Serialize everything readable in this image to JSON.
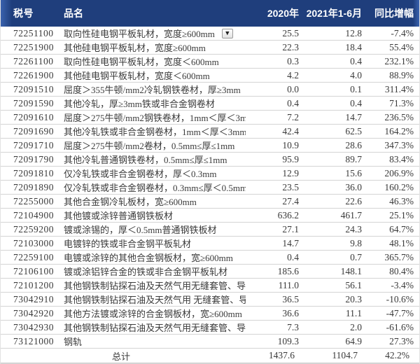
{
  "table": {
    "headers": {
      "code": "税号",
      "name": "品名",
      "y2020": "2020年",
      "y2021h1": "2021年1-6月",
      "yoy": "同比增幅"
    },
    "rows": [
      {
        "code": "72251100",
        "name": "取向性硅电钢平板轧材，宽度≥600mm",
        "y2020": "25.5",
        "y2021h1": "12.8",
        "yoy": "-7.4%",
        "has_filter_dropdown": true
      },
      {
        "code": "72251900",
        "name": "其他硅电钢平板轧材，宽度≥600mm",
        "y2020": "22.3",
        "y2021h1": "18.4",
        "yoy": "55.4%"
      },
      {
        "code": "72261100",
        "name": "取向性硅电钢平板轧材，宽度＜600mm",
        "y2020": "0.3",
        "y2021h1": "0.4",
        "yoy": "232.1%"
      },
      {
        "code": "72261900",
        "name": "其他硅电钢平板轧材，宽度＜600mm",
        "y2020": "4.2",
        "y2021h1": "4.0",
        "yoy": "88.9%"
      },
      {
        "code": "72091510",
        "name": "屈度＞355牛顿/mm2冷轧钢铁卷材，厚≥3mm",
        "y2020": "0.0",
        "y2021h1": "0.1",
        "yoy": "311.4%"
      },
      {
        "code": "72091590",
        "name": "其他冷轧，厚≥3mm铁或非合金钢卷材",
        "y2020": "0.4",
        "y2021h1": "0.4",
        "yoy": "71.3%"
      },
      {
        "code": "72091610",
        "name": "屈度＞275牛顿/mm2钢铁卷材，1mm＜厚＜3mm",
        "y2020": "7.2",
        "y2021h1": "14.7",
        "yoy": "236.5%"
      },
      {
        "code": "72091690",
        "name": "其他冷轧铁或非合金钢卷材，1mm＜厚＜3mm",
        "y2020": "42.4",
        "y2021h1": "62.5",
        "yoy": "164.2%"
      },
      {
        "code": "72091710",
        "name": "屈度＞275牛顿/mm2卷材，0.5mm≤厚≤1mm",
        "y2020": "10.9",
        "y2021h1": "28.6",
        "yoy": "347.3%"
      },
      {
        "code": "72091790",
        "name": "其他冷轧普通钢铁卷材，0.5mm≤厚≤1mm",
        "y2020": "95.9",
        "y2021h1": "89.7",
        "yoy": "83.4%"
      },
      {
        "code": "72091810",
        "name": "仅冷轧铁或非合金钢卷材，厚＜0.3mm",
        "y2020": "12.9",
        "y2021h1": "15.6",
        "yoy": "206.9%"
      },
      {
        "code": "72091890",
        "name": "仅冷轧铁或非合金钢卷材，0.3mm≤厚＜0.5mm",
        "y2020": "23.5",
        "y2021h1": "36.0",
        "yoy": "160.2%"
      },
      {
        "code": "72255000",
        "name": "其他合金钢冷轧板材，宽≥600mm",
        "y2020": "27.4",
        "y2021h1": "22.6",
        "yoy": "46.3%"
      },
      {
        "code": "72104900",
        "name": "其他镀或涂锌普通钢铁板材",
        "y2020": "636.2",
        "y2021h1": "461.7",
        "yoy": "25.1%"
      },
      {
        "code": "72259200",
        "name": "镀或涂锡的，厚＜0.5mm普通钢铁板材",
        "y2020": "27.1",
        "y2021h1": "24.3",
        "yoy": "64.7%"
      },
      {
        "code": "72103000",
        "name": "电镀锌的铁或非合金钢平板轧材",
        "y2020": "14.7",
        "y2021h1": "9.8",
        "yoy": "48.1%"
      },
      {
        "code": "72259100",
        "name": "电镀或涂锌的其他合金钢板材，宽≥600mm",
        "y2020": "0.4",
        "y2021h1": "0.7",
        "yoy": "365.7%"
      },
      {
        "code": "72106100",
        "name": "镀或涂铝锌合金的铁或非合金钢平板轧材",
        "y2020": "185.6",
        "y2021h1": "148.1",
        "yoy": "80.4%"
      },
      {
        "code": "72101200",
        "name": "其他钢铁制钻探石油及天然气用无缝套管、导管",
        "y2020": "111.0",
        "y2021h1": "56.1",
        "yoy": "-3.4%"
      },
      {
        "code": "73042910",
        "name": "其他钢铁制钻探石油及天然气用 无缝套管、导管",
        "y2020": "36.5",
        "y2021h1": "20.3",
        "yoy": "-10.6%"
      },
      {
        "code": "73042920",
        "name": "其他方法镀或涂锌的合金钢板材，宽≥600mm",
        "y2020": "36.6",
        "y2021h1": "11.1",
        "yoy": "-47.7%"
      },
      {
        "code": "73042930",
        "name": "其他钢铁制钻探石油及天然气用无缝套管、导管",
        "y2020": "7.3",
        "y2021h1": "2.0",
        "yoy": "-61.6%"
      },
      {
        "code": "73121000",
        "name": "钢轨",
        "y2020": "109.3",
        "y2021h1": "64.9",
        "yoy": "27.3%"
      }
    ],
    "total": {
      "label": "总计",
      "y2020": "1437.6",
      "y2021h1": "1104.7",
      "yoy": "42.2%"
    }
  },
  "icons": {
    "dropdown_arrow": "▼"
  },
  "colors": {
    "header_bg": "#1f3e7c",
    "header_edge": "#3a62ae",
    "header_text": "#ffffff",
    "row_border": "#d4d4d4",
    "text": "#3a3a3a"
  }
}
